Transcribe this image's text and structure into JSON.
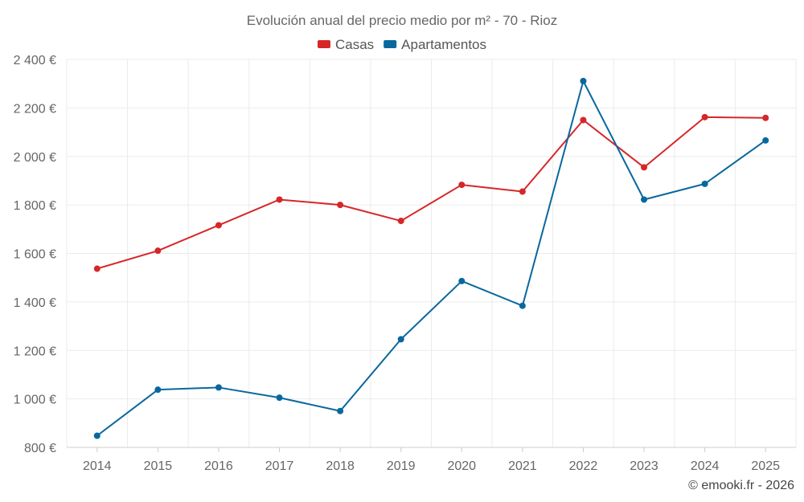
{
  "chart_data": {
    "type": "line",
    "title": "Evolución anual del precio medio por m² - 70 - Rioz",
    "categories": [
      "2014",
      "2015",
      "2016",
      "2017",
      "2018",
      "2019",
      "2020",
      "2021",
      "2022",
      "2023",
      "2024",
      "2025"
    ],
    "series": [
      {
        "name": "Casas",
        "color": "#d62728",
        "values": [
          1537,
          1611,
          1716,
          1822,
          1800,
          1734,
          1883,
          1855,
          2150,
          1955,
          2162,
          2159
        ]
      },
      {
        "name": "Apartamentos",
        "color": "#08689d",
        "values": [
          848,
          1038,
          1047,
          1005,
          950,
          1246,
          1486,
          1384,
          2311,
          1822,
          1887,
          2066
        ]
      }
    ],
    "ylim": [
      800,
      2400
    ],
    "yticks": [
      800,
      1000,
      1200,
      1400,
      1600,
      1800,
      2000,
      2200,
      2400
    ],
    "ytick_labels": [
      "800 €",
      "1 000 €",
      "1 200 €",
      "1 400 €",
      "1 600 €",
      "1 800 €",
      "2 000 €",
      "2 200 €",
      "2 400 €"
    ],
    "xlabel": "",
    "ylabel": "",
    "grid": true,
    "legend_position": "top-center"
  },
  "credit": "© emooki.fr - 2026"
}
